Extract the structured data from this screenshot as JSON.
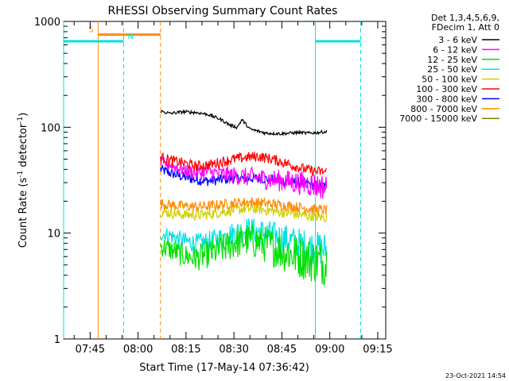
{
  "chart_data": {
    "type": "line",
    "title": "RHESSI Observing Summary Count Rates",
    "xlabel": "Start Time (17-May-14 07:36:42)",
    "ylabel_main": "Count Rate (s",
    "ylabel_sup1": "-1",
    "ylabel_mid": " detector",
    "ylabel_sup2": "-1",
    "ylabel_end": ")",
    "y_scale": "log",
    "ylim": [
      1,
      1000
    ],
    "xlim": [
      "07:36:42",
      "09:17:30"
    ],
    "x_ticks": [
      "07:45",
      "08:00",
      "08:15",
      "08:30",
      "08:45",
      "09:00",
      "09:15"
    ],
    "y_ticks": [
      "1",
      "10",
      "100",
      "1000"
    ],
    "legend_header": [
      "Det 1,3,4,5,6,9,",
      "FDecim 1, Att 0"
    ],
    "legend_position": "top-right",
    "timestamp": "23-Oct-2021 14:54",
    "series": [
      {
        "name": "3 - 6 keV",
        "color": "#000000",
        "x": [
          "08:07:00",
          "08:10:00",
          "08:14:00",
          "08:18:00",
          "08:22:00",
          "08:26:00",
          "08:29:00",
          "08:31:00",
          "08:32:30",
          "08:35:00",
          "08:40:00",
          "08:45:00",
          "08:50:00",
          "08:53:00",
          "08:56:00",
          "08:59:00"
        ],
        "values": [
          142,
          135,
          140,
          138,
          132,
          118,
          104,
          100,
          118,
          96,
          88,
          87,
          89,
          88,
          89,
          91
        ]
      },
      {
        "name": "6 - 12 keV",
        "color": "#ff00ff",
        "x": [
          "08:07:00",
          "08:10:00",
          "08:14:00",
          "08:18:00",
          "08:22:00",
          "08:26:00",
          "08:30:00",
          "08:34:00",
          "08:38:00",
          "08:42:00",
          "08:46:00",
          "08:50:00",
          "08:54:00",
          "08:56:00",
          "08:59:00"
        ],
        "values": [
          47,
          44,
          40,
          37,
          38,
          36,
          35,
          34,
          33,
          32,
          31,
          30,
          29,
          28,
          27
        ]
      },
      {
        "name": "12 - 25 keV",
        "color": "#00e000",
        "x": [
          "08:07:00",
          "08:10:00",
          "08:14:00",
          "08:18:00",
          "08:22:00",
          "08:26:00",
          "08:30:00",
          "08:34:00",
          "08:38:00",
          "08:42:00",
          "08:46:00",
          "08:50:00",
          "08:54:00",
          "08:56:00",
          "08:59:00"
        ],
        "values": [
          7.5,
          7.0,
          6.2,
          5.8,
          6.3,
          7.0,
          8.0,
          8.6,
          8.2,
          7.4,
          6.6,
          6.0,
          5.6,
          5.4,
          5.2
        ]
      },
      {
        "name": "25 - 50 keV",
        "color": "#00e0e0",
        "x": [
          "08:07:00",
          "08:10:00",
          "08:14:00",
          "08:18:00",
          "08:22:00",
          "08:26:00",
          "08:30:00",
          "08:34:00",
          "08:38:00",
          "08:42:00",
          "08:46:00",
          "08:50:00",
          "08:54:00",
          "08:56:00",
          "08:59:00"
        ],
        "values": [
          10,
          9.5,
          8.5,
          8.0,
          8.3,
          9.0,
          10.0,
          10.8,
          10.3,
          9.5,
          8.8,
          8.0,
          7.4,
          7.2,
          7.0
        ]
      },
      {
        "name": "50 - 100 keV",
        "color": "#d0d000",
        "x": [
          "08:07:00",
          "08:10:00",
          "08:14:00",
          "08:18:00",
          "08:22:00",
          "08:26:00",
          "08:30:00",
          "08:34:00",
          "08:38:00",
          "08:42:00",
          "08:46:00",
          "08:50:00",
          "08:54:00",
          "08:56:00",
          "08:59:00"
        ],
        "values": [
          16,
          15.5,
          15,
          14.8,
          15,
          15.8,
          16.5,
          17,
          16.8,
          16.2,
          15.6,
          15,
          14.5,
          14.2,
          14
        ]
      },
      {
        "name": "100 - 300 keV",
        "color": "#ff0000",
        "x": [
          "08:07:00",
          "08:10:00",
          "08:14:00",
          "08:18:00",
          "08:22:00",
          "08:26:00",
          "08:30:00",
          "08:34:00",
          "08:38:00",
          "08:42:00",
          "08:46:00",
          "08:50:00",
          "08:54:00",
          "08:56:00",
          "08:59:00"
        ],
        "values": [
          52,
          49,
          46,
          43,
          44,
          47,
          50,
          52,
          53,
          50,
          46,
          42,
          39,
          38,
          38
        ]
      },
      {
        "name": "300 - 800 keV",
        "color": "#0000ff",
        "x": [
          "08:07:00",
          "08:10:00",
          "08:14:00",
          "08:18:00",
          "08:22:00",
          "08:26:00",
          "08:30:00",
          "08:34:00",
          "08:38:00",
          "08:42:00",
          "08:46:00",
          "08:50:00",
          "08:54:00",
          "08:56:00",
          "08:59:00"
        ],
        "values": [
          40,
          37,
          34,
          32,
          31,
          32,
          33,
          33,
          33,
          32,
          31,
          30,
          29,
          28,
          28
        ]
      },
      {
        "name": "800 - 7000 keV",
        "color": "#ff8c00",
        "x": [
          "08:07:00",
          "08:10:00",
          "08:14:00",
          "08:18:00",
          "08:22:00",
          "08:26:00",
          "08:30:00",
          "08:34:00",
          "08:38:00",
          "08:42:00",
          "08:46:00",
          "08:50:00",
          "08:54:00",
          "08:56:00",
          "08:59:00"
        ],
        "values": [
          19,
          18.5,
          18,
          17.8,
          18,
          18.6,
          19.2,
          19.6,
          19.4,
          18.8,
          18.2,
          17.6,
          17,
          16.6,
          16.4
        ]
      },
      {
        "name": "7000 - 15000 keV",
        "color": "#808000",
        "x": [],
        "values": []
      }
    ],
    "flags": [
      {
        "label": "S",
        "color": "#ff8c00",
        "level": 750,
        "start": "07:47:30",
        "end": "08:07:00"
      },
      {
        "label": "N",
        "color": "#00e0e0",
        "level": 650,
        "start": "07:36:42",
        "end": "07:55:30"
      },
      {
        "label": "",
        "color": "#00e0e0",
        "level": 650,
        "start": "08:55:30",
        "end": "09:09:40"
      }
    ],
    "vlines": [
      {
        "time": "07:36:42",
        "color": "#00e0e0",
        "style": "solid"
      },
      {
        "time": "07:47:30",
        "color": "#ff8c00",
        "style": "solid"
      },
      {
        "time": "07:55:30",
        "color": "#00e0e0",
        "style": "dashed"
      },
      {
        "time": "08:07:00",
        "color": "#ff8c00",
        "style": "dashed"
      },
      {
        "time": "08:55:30",
        "color": "#00e0e0",
        "style": "solid"
      },
      {
        "time": "09:09:40",
        "color": "#00e0e0",
        "style": "dashed"
      }
    ]
  }
}
